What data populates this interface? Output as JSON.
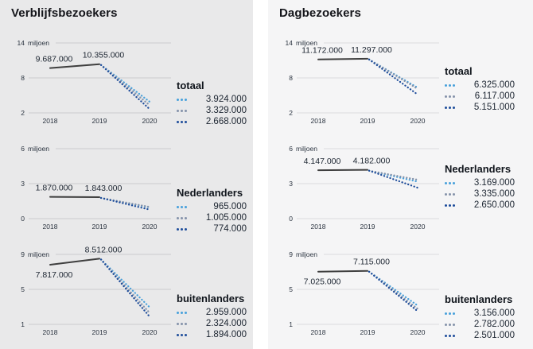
{
  "panels": [
    {
      "title": "Verblijfsbezoekers"
    },
    {
      "title": "Dagbezoekers"
    }
  ],
  "unit_label": "miljoen",
  "colors": {
    "actual_line": "#3f3f3f",
    "scenario_light_blue": "#47a0db",
    "scenario_gray_blue": "#8492aa",
    "scenario_dark_blue": "#1e4d9b",
    "gridline": "#cbcbce",
    "text_dark": "#1b2430"
  },
  "chart_data": [
    {
      "type": "line",
      "panel": "Verblijfsbezoekers",
      "legend_title": "totaal",
      "x": [
        "2018",
        "2019",
        "2020"
      ],
      "unit": "miljoen",
      "ylim": [
        2,
        14
      ],
      "yticks": [
        2,
        8,
        14
      ],
      "grid": true,
      "legend_position": "right",
      "actual": [
        9687000,
        10355000
      ],
      "scenarios_2020": [
        {
          "color": "#47a0db",
          "value": 3924000
        },
        {
          "color": "#8492aa",
          "value": 3329000
        },
        {
          "color": "#1e4d9b",
          "value": 2668000
        }
      ],
      "first_label_below": false
    },
    {
      "type": "line",
      "panel": "Verblijfsbezoekers",
      "legend_title": "Nederlanders",
      "x": [
        "2018",
        "2019",
        "2020"
      ],
      "unit": "miljoen",
      "ylim": [
        0,
        6
      ],
      "yticks": [
        0,
        3,
        6
      ],
      "grid": true,
      "legend_position": "right",
      "actual": [
        1870000,
        1843000
      ],
      "scenarios_2020": [
        {
          "color": "#47a0db",
          "value": 965000
        },
        {
          "color": "#8492aa",
          "value": 1005000
        },
        {
          "color": "#1e4d9b",
          "value": 774000
        }
      ],
      "first_label_below": false
    },
    {
      "type": "line",
      "panel": "Verblijfsbezoekers",
      "legend_title": "buitenlanders",
      "x": [
        "2018",
        "2019",
        "2020"
      ],
      "unit": "miljoen",
      "ylim": [
        1,
        9
      ],
      "yticks": [
        1,
        5,
        9
      ],
      "grid": true,
      "legend_position": "right",
      "actual": [
        7817000,
        8512000
      ],
      "scenarios_2020": [
        {
          "color": "#47a0db",
          "value": 2959000
        },
        {
          "color": "#8492aa",
          "value": 2324000
        },
        {
          "color": "#1e4d9b",
          "value": 1894000
        }
      ],
      "first_label_below": true
    },
    {
      "type": "line",
      "panel": "Dagbezoekers",
      "legend_title": "totaal",
      "x": [
        "2018",
        "2019",
        "2020"
      ],
      "unit": "miljoen",
      "ylim": [
        2,
        14
      ],
      "yticks": [
        2,
        8,
        14
      ],
      "grid": true,
      "legend_position": "right",
      "actual": [
        11172000,
        11297000
      ],
      "scenarios_2020": [
        {
          "color": "#47a0db",
          "value": 6325000
        },
        {
          "color": "#8492aa",
          "value": 6117000
        },
        {
          "color": "#1e4d9b",
          "value": 5151000
        }
      ],
      "first_label_below": false
    },
    {
      "type": "line",
      "panel": "Dagbezoekers",
      "legend_title": "Nederlanders",
      "x": [
        "2018",
        "2019",
        "2020"
      ],
      "unit": "miljoen",
      "ylim": [
        0,
        6
      ],
      "yticks": [
        0,
        3,
        6
      ],
      "grid": true,
      "legend_position": "right",
      "actual": [
        4147000,
        4182000
      ],
      "scenarios_2020": [
        {
          "color": "#47a0db",
          "value": 3169000
        },
        {
          "color": "#8492aa",
          "value": 3335000
        },
        {
          "color": "#1e4d9b",
          "value": 2650000
        }
      ],
      "first_label_below": false
    },
    {
      "type": "line",
      "panel": "Dagbezoekers",
      "legend_title": "buitenlanders",
      "x": [
        "2018",
        "2019",
        "2020"
      ],
      "unit": "miljoen",
      "ylim": [
        1,
        9
      ],
      "yticks": [
        1,
        5,
        9
      ],
      "grid": true,
      "legend_position": "right",
      "actual": [
        7025000,
        7115000
      ],
      "scenarios_2020": [
        {
          "color": "#47a0db",
          "value": 3156000
        },
        {
          "color": "#8492aa",
          "value": 2782000
        },
        {
          "color": "#1e4d9b",
          "value": 2501000
        }
      ],
      "first_label_below": true
    }
  ]
}
